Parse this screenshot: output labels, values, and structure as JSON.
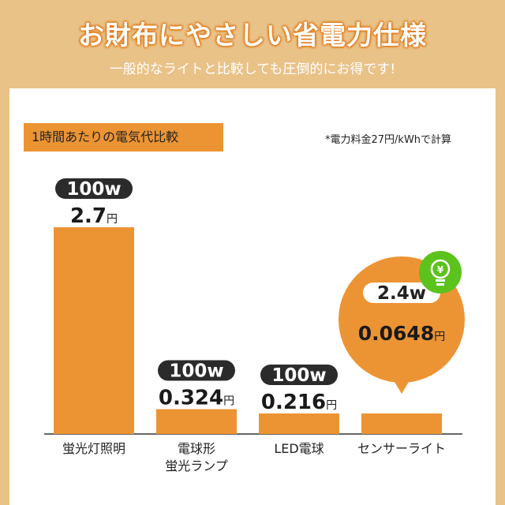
{
  "header": {
    "title": "お財布にやさしい省電力仕様",
    "subtitle": "一般的なライトと比較しても圧倒的にお得です!"
  },
  "card": {
    "tag_label": "1時間あたりの電気代比較",
    "note": "*電力料金27円/kWhで計算"
  },
  "colors": {
    "background": "#e9c288",
    "bar": "#ec9433",
    "pill": "#2b2b2b",
    "eco_icon": "#5cc21c",
    "title_outline": "#e27a18"
  },
  "icons": {
    "eco": "yen-lightbulb-icon"
  },
  "chart_data": {
    "type": "bar",
    "title": "1時間あたりの電気代比較",
    "unit": "円",
    "categories": [
      [
        "蛍光灯照明"
      ],
      [
        "電球形",
        "蛍光ランプ"
      ],
      [
        "LED電球"
      ],
      [
        "センサーライト"
      ]
    ],
    "values": [
      2.7,
      0.324,
      0.216,
      0.0648
    ],
    "value_labels": [
      "2.7",
      "0.324",
      "0.216",
      "0.0648"
    ],
    "watt_labels": [
      "100w",
      "100w",
      "100w",
      "2.4w"
    ],
    "highlight_index": 3,
    "grid": false
  }
}
